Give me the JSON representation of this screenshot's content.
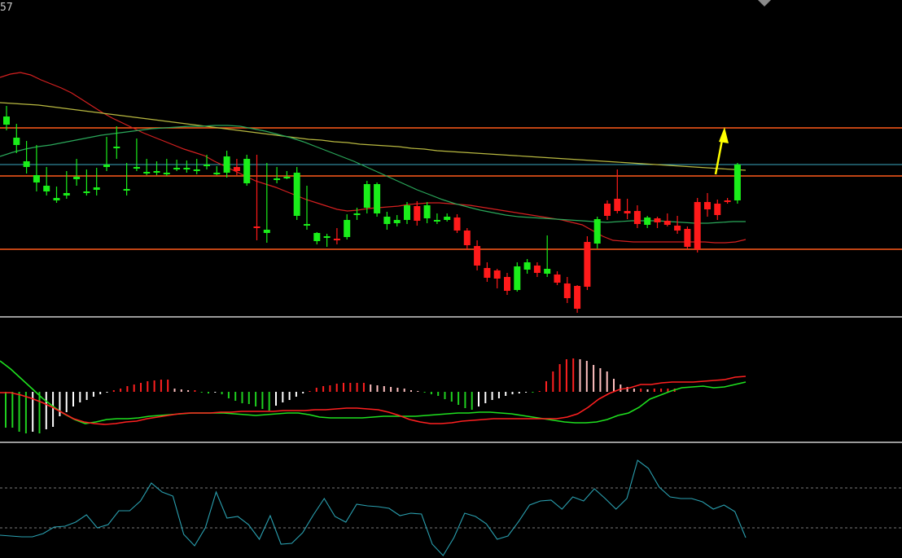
{
  "header": {
    "corner_text": "57"
  },
  "colors": {
    "background": "#000000",
    "up_candle": "#ff1a1a",
    "down_candle": "#1aee1a",
    "level_line": "#ff5a1a",
    "cyan_line": "#3aa9c0",
    "ma_red": "#d62020",
    "ma_yellow": "#b8b840",
    "ma_green": "#2aa85a",
    "macd_dif": "#1fe01f",
    "macd_dea": "#ff2020",
    "hist_pos_strong": "#ff2020",
    "hist_pos_weak": "#ffc0c0",
    "hist_neg_strong": "#1fd01f",
    "hist_neg_weak": "#ffffff",
    "osc_line": "#2aa0b0",
    "panel_divider": "#9a9a9a",
    "arrow": "#ffff00"
  },
  "chart_data": [
    {
      "type": "candlestick",
      "panel": "price",
      "price_range": [
        0,
        390
      ],
      "levels": [
        157,
        216,
        306
      ],
      "cyan_level": 202,
      "arrow_at_index": 70,
      "candles": [
        [
          143,
          153,
          130,
          160
        ],
        [
          169,
          178,
          152,
          188
        ],
        [
          198,
          205,
          173,
          213
        ],
        [
          215,
          224,
          178,
          235
        ],
        [
          228,
          235,
          205,
          240
        ],
        [
          243,
          246,
          229,
          249
        ],
        [
          237,
          240,
          210,
          244
        ],
        [
          217,
          220,
          195,
          228
        ],
        [
          235,
          237,
          208,
          240
        ],
        [
          230,
          233,
          206,
          240
        ],
        [
          202,
          205,
          168,
          210
        ],
        [
          180,
          182,
          155,
          195
        ],
        [
          232,
          234,
          200,
          240
        ],
        [
          205,
          207,
          170,
          210
        ],
        [
          211,
          212,
          195,
          215
        ],
        [
          210,
          211,
          198,
          215
        ],
        [
          212,
          213,
          195,
          216
        ],
        [
          206,
          207,
          196,
          210
        ],
        [
          206,
          207,
          197,
          212
        ],
        [
          208,
          209,
          195,
          214
        ],
        [
          202,
          203,
          190,
          208
        ],
        [
          212,
          212,
          204,
          215
        ],
        [
          192,
          212,
          185,
          218
        ],
        [
          210,
          205,
          195,
          215
        ],
        [
          195,
          225,
          190,
          228
        ],
        [
          280,
          278,
          190,
          295
        ],
        [
          282,
          286,
          200,
          298
        ],
        [
          219,
          220,
          205,
          225
        ],
        [
          217,
          219,
          210,
          220
        ],
        [
          212,
          265,
          205,
          270
        ],
        [
          275,
          276,
          228,
          282
        ],
        [
          286,
          296,
          285,
          300
        ],
        [
          290,
          291,
          287,
          303
        ],
        [
          294,
          293,
          280,
          300
        ],
        [
          270,
          291,
          263,
          294
        ],
        [
          262,
          262,
          255,
          270
        ],
        [
          226,
          255,
          222,
          262
        ],
        [
          226,
          262,
          224,
          266
        ],
        [
          266,
          275,
          260,
          282
        ],
        [
          270,
          274,
          264,
          278
        ],
        [
          252,
          270,
          248,
          275
        ],
        [
          271,
          253,
          247,
          277
        ],
        [
          252,
          268,
          248,
          274
        ],
        [
          270,
          271,
          262,
          275
        ],
        [
          266,
          270,
          262,
          272
        ],
        [
          283,
          267,
          263,
          286
        ],
        [
          301,
          283,
          280,
          307
        ],
        [
          326,
          302,
          295,
          332
        ],
        [
          341,
          329,
          322,
          346
        ],
        [
          342,
          332,
          330,
          354
        ],
        [
          357,
          340,
          335,
          362
        ],
        [
          327,
          356,
          322,
          358
        ],
        [
          322,
          331,
          318,
          336
        ],
        [
          335,
          326,
          322,
          340
        ],
        [
          330,
          336,
          289,
          340
        ],
        [
          347,
          337,
          333,
          350
        ],
        [
          366,
          348,
          340,
          372
        ],
        [
          379,
          351,
          350,
          384
        ],
        [
          352,
          297,
          290,
          356
        ],
        [
          269,
          299,
          266,
          305
        ],
        [
          265,
          250,
          246,
          270
        ],
        [
          259,
          244,
          208,
          262
        ],
        [
          262,
          259,
          244,
          269
        ],
        [
          275,
          259,
          252,
          280
        ],
        [
          267,
          276,
          265,
          280
        ],
        [
          273,
          268,
          266,
          280
        ],
        [
          276,
          271,
          262,
          278
        ],
        [
          283,
          277,
          265,
          287
        ],
        [
          303,
          281,
          278,
          306
        ],
        [
          306,
          248,
          243,
          310
        ],
        [
          257,
          248,
          237,
          266
        ],
        [
          264,
          250,
          245,
          270
        ],
        [
          247,
          246,
          243,
          250
        ],
        [
          202,
          246,
          200,
          250
        ]
      ],
      "ma_red": [
        95,
        91,
        89,
        92,
        98,
        103,
        108,
        114,
        122,
        130,
        138,
        145,
        151,
        157,
        163,
        168,
        173,
        178,
        183,
        187,
        191,
        198,
        204,
        210,
        216,
        222,
        226,
        230,
        235,
        240,
        245,
        249,
        253,
        257,
        259,
        258,
        256,
        255,
        254,
        253,
        251,
        250,
        249,
        249,
        250,
        251,
        252,
        254,
        256,
        258,
        260,
        262,
        264,
        266,
        268,
        270,
        273,
        276,
        283,
        290,
        295,
        296,
        297,
        297,
        297,
        297,
        297,
        297,
        297,
        297,
        298,
        298,
        297,
        294
      ],
      "ma_yellow": [
        126,
        127,
        128,
        129,
        131,
        133,
        135,
        137,
        139,
        141,
        143,
        145,
        147,
        149,
        151,
        153,
        155,
        157,
        159,
        161,
        163,
        165,
        167,
        169,
        171,
        172,
        174,
        175,
        177,
        178,
        179,
        180,
        182,
        183,
        185,
        186,
        187,
        188,
        189,
        190,
        191,
        192,
        193,
        194,
        195,
        196,
        197,
        198,
        199,
        200,
        201,
        202,
        203,
        204,
        205,
        206,
        207,
        208,
        209
      ],
      "ma_green": [
        192,
        187,
        183,
        180,
        178,
        175,
        172,
        169,
        166,
        164,
        162,
        160,
        158,
        157,
        156,
        155,
        155,
        154,
        154,
        155,
        158,
        161,
        165,
        169,
        174,
        180,
        186,
        192,
        198,
        205,
        212,
        219,
        226,
        233,
        239,
        245,
        250,
        254,
        258,
        261,
        264,
        266,
        267,
        268,
        269,
        270,
        271,
        272,
        273,
        272,
        271,
        271,
        271,
        272,
        273,
        274,
        274,
        273,
        272,
        272
      ]
    },
    {
      "type": "macd",
      "panel": "macd",
      "zero_level": 481,
      "histogram": [
        -44,
        -44,
        -49,
        -51,
        -49,
        -51,
        -46,
        -43,
        -30,
        -25,
        -18,
        -13,
        -10,
        -6,
        -3,
        -1,
        2,
        4,
        7,
        9,
        11,
        13,
        14,
        15,
        15,
        4,
        3,
        2,
        2,
        -1,
        -2,
        -1,
        -3,
        -8,
        -11,
        -14,
        -15,
        -18,
        -21,
        -23,
        -17,
        -13,
        -10,
        -6,
        -2,
        1,
        5,
        7,
        8,
        10,
        11,
        11,
        11,
        11,
        9,
        8,
        7,
        6,
        5,
        4,
        2,
        1,
        -1,
        -3,
        -5,
        -9,
        -12,
        -16,
        -20,
        -22,
        -18,
        -14,
        -10,
        -8,
        -5,
        -3,
        -2,
        -1,
        -1,
        1,
        13,
        25,
        34,
        40,
        41,
        40,
        38,
        33,
        29,
        25,
        16,
        9,
        6,
        4,
        4,
        3,
        4,
        4,
        4,
        4
      ],
      "dif": [
        443,
        453,
        465,
        477,
        489,
        499,
        508,
        515,
        520,
        518,
        515,
        514,
        514,
        513,
        511,
        510,
        509,
        508,
        507,
        507,
        507,
        507,
        508,
        509,
        510,
        509,
        508,
        507,
        507,
        509,
        512,
        513,
        513,
        513,
        513,
        512,
        511,
        511,
        511,
        511,
        510,
        509,
        508,
        507,
        507,
        506,
        506,
        507,
        508,
        510,
        512,
        514,
        516,
        518,
        519,
        519,
        518,
        515,
        510,
        507,
        500,
        490,
        485,
        480,
        476,
        475,
        474,
        476,
        475,
        472,
        469
      ],
      "dea": [
        482,
        482,
        485,
        489,
        494,
        500,
        507,
        514,
        518,
        520,
        521,
        520,
        518,
        517,
        514,
        512,
        510,
        508,
        507,
        507,
        507,
        506,
        506,
        505,
        505,
        505,
        505,
        504,
        504,
        504,
        503,
        503,
        502,
        501,
        501,
        502,
        503,
        506,
        510,
        515,
        518,
        520,
        520,
        519,
        517,
        516,
        515,
        514,
        514,
        514,
        514,
        514,
        514,
        514,
        512,
        508,
        500,
        490,
        483,
        478,
        476,
        472,
        472,
        470,
        469,
        469,
        469,
        468,
        467,
        466,
        463,
        462
      ]
    },
    {
      "type": "line",
      "panel": "oscillator",
      "reference_levels": [
        599,
        648
      ],
      "values": [
        657,
        658,
        659,
        659,
        655,
        647,
        646,
        641,
        632,
        648,
        644,
        627,
        627,
        615,
        593,
        604,
        609,
        656,
        670,
        648,
        604,
        636,
        634,
        644,
        662,
        633,
        668,
        667,
        654,
        632,
        612,
        634,
        641,
        619,
        621,
        622,
        624,
        633,
        630,
        631,
        668,
        682,
        660,
        630,
        634,
        643,
        662,
        658,
        640,
        620,
        615,
        614,
        625,
        610,
        615,
        600,
        612,
        625,
        612,
        565,
        575,
        598,
        610,
        612,
        612,
        616,
        625,
        620,
        628,
        660
      ]
    }
  ]
}
